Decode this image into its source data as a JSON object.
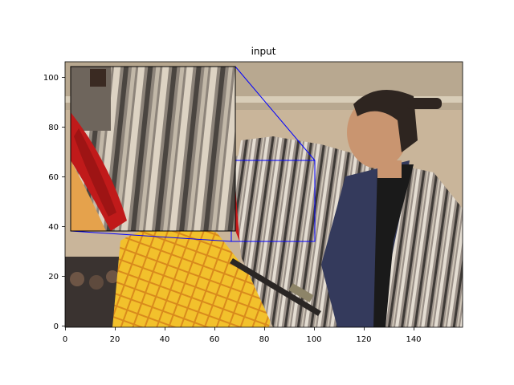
{
  "figure": {
    "title": "input",
    "x_ticks": [
      "0",
      "20",
      "40",
      "60",
      "80",
      "100",
      "120",
      "140"
    ],
    "y_ticks": [
      "0",
      "20",
      "40",
      "60",
      "80",
      "100"
    ],
    "xlim": [
      0,
      160
    ],
    "ylim": [
      0,
      106
    ],
    "inset_region": {
      "x": [
        67,
        100
      ],
      "y": [
        34,
        67
      ]
    },
    "zoom_line_color": "#0000ff"
  }
}
